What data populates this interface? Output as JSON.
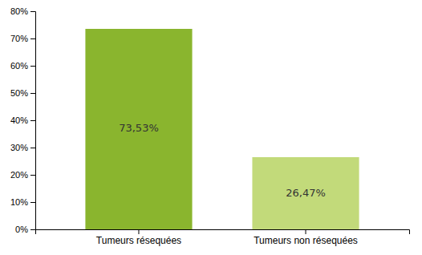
{
  "chart_data": {
    "type": "bar",
    "categories": [
      "Tumeurs résequées",
      "Tumeurs non résequées"
    ],
    "values": [
      73.53,
      26.47
    ],
    "value_labels": [
      "73,53%",
      "26,47%"
    ],
    "colors": [
      "#8ab52e",
      "#c2da7a"
    ],
    "ylim": [
      0,
      80
    ],
    "yticks": [
      {
        "value": 0,
        "label": "0%"
      },
      {
        "value": 10,
        "label": "10%"
      },
      {
        "value": 20,
        "label": "20%"
      },
      {
        "value": 30,
        "label": "30%"
      },
      {
        "value": 40,
        "label": "40%"
      },
      {
        "value": 50,
        "label": "50%"
      },
      {
        "value": 60,
        "label": "60%"
      },
      {
        "value": 70,
        "label": "70%"
      },
      {
        "value": 80,
        "label": "80%"
      }
    ],
    "grid": false,
    "data_labels": true
  }
}
